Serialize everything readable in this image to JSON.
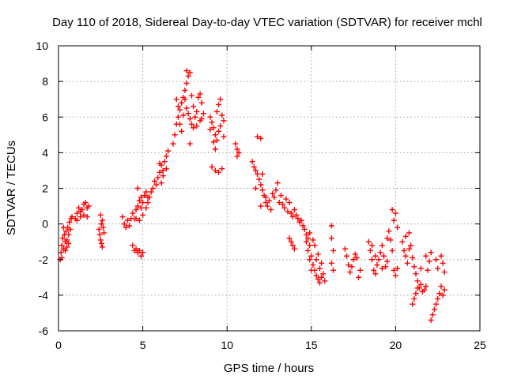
{
  "chart_data": {
    "type": "scatter",
    "title": "Day 110 of 2018, Sidereal Day-to-day VTEC variation (SDTVAR) for receiver mchl",
    "xlabel": "GPS time / hours",
    "ylabel": "SDTVAR / TECUs",
    "xlim": [
      0,
      25
    ],
    "ylim": [
      -6,
      10
    ],
    "xticks": [
      0,
      5,
      10,
      15,
      20,
      25
    ],
    "yticks": [
      -6,
      -4,
      -2,
      0,
      2,
      4,
      6,
      8,
      10
    ],
    "xtick_labels": [
      "0",
      "5",
      "10",
      "15",
      "20",
      "25"
    ],
    "ytick_labels": [
      "-6",
      "-4",
      "-2",
      "0",
      "2",
      "4",
      "6",
      "8",
      "10"
    ],
    "grid": true,
    "marker": "plus",
    "color": "#ff0000",
    "series": [
      {
        "name": "SDTVAR",
        "points": [
          [
            0.1,
            -2.0
          ],
          [
            0.15,
            -1.6
          ],
          [
            0.2,
            -1.2
          ],
          [
            0.25,
            -0.8
          ],
          [
            0.3,
            -1.4
          ],
          [
            0.35,
            -0.6
          ],
          [
            0.4,
            -1.0
          ],
          [
            0.45,
            -0.4
          ],
          [
            0.5,
            -0.9
          ],
          [
            0.55,
            -0.2
          ],
          [
            0.6,
            -0.6
          ],
          [
            0.65,
            0.1
          ],
          [
            0.7,
            -0.3
          ],
          [
            0.75,
            0.3
          ],
          [
            0.8,
            0.4
          ],
          [
            0.5,
            -1.3
          ],
          [
            0.3,
            -0.2
          ],
          [
            0.6,
            -1.1
          ],
          [
            0.2,
            -1.9
          ],
          [
            0.4,
            -1.5
          ],
          [
            1.0,
            0.3
          ],
          [
            1.1,
            0.6
          ],
          [
            1.2,
            0.9
          ],
          [
            1.3,
            0.7
          ],
          [
            1.4,
            0.8
          ],
          [
            1.5,
            1.1
          ],
          [
            1.6,
            1.2
          ],
          [
            1.7,
            0.9
          ],
          [
            1.8,
            1.0
          ],
          [
            1.1,
            0.2
          ],
          [
            1.3,
            0.4
          ],
          [
            1.5,
            0.5
          ],
          [
            1.7,
            0.4
          ],
          [
            2.4,
            -0.3
          ],
          [
            2.45,
            -0.6
          ],
          [
            2.5,
            -0.9
          ],
          [
            2.55,
            -1.1
          ],
          [
            2.6,
            -1.3
          ],
          [
            2.5,
            0.5
          ],
          [
            2.6,
            0.2
          ],
          [
            2.65,
            -0.2
          ],
          [
            2.7,
            -0.5
          ],
          [
            2.55,
            0.0
          ],
          [
            3.8,
            0.4
          ],
          [
            3.9,
            0.0
          ],
          [
            4.0,
            -0.2
          ],
          [
            4.1,
            0.2
          ],
          [
            4.2,
            -0.1
          ],
          [
            4.3,
            0.3
          ],
          [
            4.4,
            0.6
          ],
          [
            4.5,
            0.3
          ],
          [
            4.6,
            0.8
          ],
          [
            4.7,
            1.0
          ],
          [
            4.8,
            1.3
          ],
          [
            4.9,
            1.5
          ],
          [
            5.0,
            1.2
          ],
          [
            5.1,
            1.6
          ],
          [
            5.2,
            1.8
          ],
          [
            5.3,
            1.2
          ],
          [
            5.4,
            1.5
          ],
          [
            5.5,
            1.8
          ],
          [
            4.4,
            -1.2
          ],
          [
            4.5,
            -1.5
          ],
          [
            4.6,
            -1.4
          ],
          [
            4.7,
            -1.6
          ],
          [
            4.8,
            -1.5
          ],
          [
            4.9,
            -1.8
          ],
          [
            5.0,
            -1.6
          ],
          [
            4.7,
            2.0
          ],
          [
            4.8,
            0.2
          ],
          [
            5.0,
            0.5
          ],
          [
            5.2,
            0.9
          ],
          [
            5.3,
            1.5
          ],
          [
            4.6,
            0.3
          ],
          [
            4.9,
            0.9
          ],
          [
            5.6,
            2.0
          ],
          [
            5.7,
            2.4
          ],
          [
            5.8,
            2.2
          ],
          [
            5.9,
            2.6
          ],
          [
            6.0,
            2.9
          ],
          [
            6.1,
            3.3
          ],
          [
            6.2,
            3.0
          ],
          [
            6.3,
            3.5
          ],
          [
            6.4,
            3.8
          ],
          [
            6.5,
            4.1
          ],
          [
            6.0,
            3.4
          ],
          [
            6.2,
            2.7
          ],
          [
            6.4,
            3.1
          ],
          [
            6.1,
            2.3
          ],
          [
            6.8,
            4.5
          ],
          [
            6.9,
            5.0
          ],
          [
            7.0,
            5.6
          ],
          [
            7.1,
            6.0
          ],
          [
            7.2,
            6.4
          ],
          [
            7.3,
            6.8
          ],
          [
            7.4,
            7.1
          ],
          [
            7.5,
            7.5
          ],
          [
            7.6,
            7.9
          ],
          [
            7.7,
            8.3
          ],
          [
            7.8,
            8.5
          ],
          [
            7.6,
            8.6
          ],
          [
            7.5,
            7.0
          ],
          [
            7.6,
            6.5
          ],
          [
            7.7,
            6.2
          ],
          [
            7.8,
            5.9
          ],
          [
            7.9,
            5.6
          ],
          [
            8.0,
            5.4
          ],
          [
            7.9,
            7.2
          ],
          [
            8.0,
            6.6
          ],
          [
            8.1,
            6.0
          ],
          [
            8.2,
            6.3
          ],
          [
            8.3,
            7.1
          ],
          [
            8.4,
            7.3
          ],
          [
            8.5,
            6.8
          ],
          [
            8.6,
            6.2
          ],
          [
            8.4,
            5.8
          ],
          [
            7.3,
            5.2
          ],
          [
            7.2,
            5.6
          ],
          [
            7.0,
            7.0
          ],
          [
            7.8,
            4.5
          ],
          [
            8.2,
            5.5
          ],
          [
            8.5,
            5.9
          ],
          [
            7.4,
            6.1
          ],
          [
            7.1,
            6.6
          ],
          [
            9.0,
            6.0
          ],
          [
            9.1,
            5.7
          ],
          [
            9.2,
            5.4
          ],
          [
            9.3,
            5.0
          ],
          [
            9.4,
            4.7
          ],
          [
            9.5,
            5.2
          ],
          [
            9.6,
            5.5
          ],
          [
            9.7,
            6.1
          ],
          [
            9.8,
            5.8
          ],
          [
            9.5,
            6.7
          ],
          [
            9.6,
            7.0
          ],
          [
            9.4,
            6.3
          ],
          [
            9.2,
            4.6
          ],
          [
            9.3,
            4.2
          ],
          [
            9.1,
            3.2
          ],
          [
            9.3,
            3.0
          ],
          [
            9.5,
            2.9
          ],
          [
            9.7,
            3.1
          ],
          [
            9.0,
            5.3
          ],
          [
            9.8,
            4.9
          ],
          [
            10.5,
            4.5
          ],
          [
            10.6,
            4.2
          ],
          [
            10.7,
            4.0
          ],
          [
            10.6,
            3.8
          ],
          [
            11.5,
            3.5
          ],
          [
            11.6,
            3.2
          ],
          [
            11.7,
            3.0
          ],
          [
            11.8,
            2.8
          ],
          [
            11.9,
            2.5
          ],
          [
            12.0,
            2.2
          ],
          [
            12.1,
            1.9
          ],
          [
            12.2,
            1.6
          ],
          [
            11.8,
            4.9
          ],
          [
            12.0,
            4.8
          ],
          [
            12.1,
            2.8
          ],
          [
            11.7,
            2.0
          ],
          [
            12.3,
            1.2
          ],
          [
            12.4,
            1.0
          ],
          [
            12.5,
            1.3
          ],
          [
            12.6,
            0.8
          ],
          [
            12.7,
            1.7
          ],
          [
            12.8,
            1.5
          ],
          [
            12.9,
            1.9
          ],
          [
            13.0,
            2.3
          ],
          [
            13.1,
            1.2
          ],
          [
            13.2,
            1.6
          ],
          [
            13.3,
            1.1
          ],
          [
            13.4,
            0.9
          ],
          [
            13.5,
            1.4
          ],
          [
            13.6,
            0.7
          ],
          [
            13.7,
            1.2
          ],
          [
            13.8,
            0.6
          ],
          [
            13.9,
            0.4
          ],
          [
            14.0,
            0.8
          ],
          [
            14.1,
            0.5
          ],
          [
            14.2,
            0.3
          ],
          [
            14.3,
            0.1
          ],
          [
            14.4,
            0.2
          ],
          [
            14.5,
            -0.1
          ],
          [
            14.6,
            -0.3
          ],
          [
            14.7,
            -0.6
          ],
          [
            14.8,
            -0.8
          ],
          [
            14.9,
            -0.5
          ],
          [
            13.7,
            -0.8
          ],
          [
            13.8,
            -1.0
          ],
          [
            13.9,
            -1.2
          ],
          [
            14.0,
            -1.4
          ],
          [
            12.3,
            1.5
          ],
          [
            12.0,
            1.0
          ],
          [
            14.7,
            -1.0
          ],
          [
            14.8,
            -1.5
          ],
          [
            14.9,
            -2.0
          ],
          [
            15.0,
            -1.8
          ],
          [
            15.1,
            -2.3
          ],
          [
            15.2,
            -2.6
          ],
          [
            15.3,
            -2.9
          ],
          [
            15.4,
            -3.1
          ],
          [
            15.5,
            -3.3
          ],
          [
            15.6,
            -3.0
          ],
          [
            15.7,
            -2.8
          ],
          [
            15.2,
            -1.2
          ],
          [
            15.4,
            -1.7
          ],
          [
            15.6,
            -2.2
          ],
          [
            15.0,
            -2.6
          ],
          [
            15.3,
            -2.0
          ],
          [
            15.8,
            -3.2
          ],
          [
            15.5,
            -2.5
          ],
          [
            14.9,
            -1.2
          ],
          [
            15.1,
            -0.9
          ],
          [
            16.2,
            -0.8
          ],
          [
            16.3,
            -1.5
          ],
          [
            16.2,
            -2.2
          ],
          [
            16.3,
            -2.6
          ],
          [
            16.2,
            -0.1
          ],
          [
            17.0,
            -1.4
          ],
          [
            17.1,
            -1.8
          ],
          [
            17.2,
            -2.3
          ],
          [
            17.3,
            -2.7
          ],
          [
            17.4,
            -2.4
          ],
          [
            17.5,
            -2.0
          ],
          [
            17.6,
            -1.7
          ],
          [
            17.7,
            -1.9
          ],
          [
            17.8,
            -3.0
          ],
          [
            17.9,
            -2.6
          ],
          [
            18.4,
            -1.0
          ],
          [
            18.5,
            -1.5
          ],
          [
            18.6,
            -2.0
          ],
          [
            18.7,
            -2.6
          ],
          [
            18.8,
            -2.8
          ],
          [
            18.9,
            -2.3
          ],
          [
            19.0,
            -2.0
          ],
          [
            19.1,
            -1.6
          ],
          [
            19.2,
            -1.2
          ],
          [
            19.3,
            -1.8
          ],
          [
            19.4,
            -2.4
          ],
          [
            19.5,
            -2.1
          ],
          [
            19.6,
            -0.4
          ],
          [
            19.7,
            -0.9
          ],
          [
            19.8,
            -1.5
          ],
          [
            19.9,
            0.2
          ],
          [
            20.0,
            0.6
          ],
          [
            19.8,
            0.8
          ],
          [
            20.1,
            -0.2
          ],
          [
            19.9,
            -2.6
          ],
          [
            20.0,
            -2.9
          ],
          [
            20.1,
            -2.5
          ],
          [
            18.6,
            -1.2
          ],
          [
            19.2,
            -2.5
          ],
          [
            19.5,
            -0.8
          ],
          [
            18.8,
            -1.8
          ],
          [
            20.4,
            -1.0
          ],
          [
            20.5,
            -1.5
          ],
          [
            20.6,
            -1.8
          ],
          [
            20.7,
            -2.2
          ],
          [
            20.8,
            -1.4
          ],
          [
            20.9,
            -1.2
          ],
          [
            21.0,
            -1.9
          ],
          [
            21.1,
            -2.4
          ],
          [
            21.2,
            -2.8
          ],
          [
            21.3,
            -3.2
          ],
          [
            21.4,
            -3.6
          ],
          [
            21.5,
            -3.4
          ],
          [
            21.6,
            -3.8
          ],
          [
            21.7,
            -3.7
          ],
          [
            21.8,
            -3.5
          ],
          [
            21.9,
            -2.6
          ],
          [
            22.0,
            -2.1
          ],
          [
            22.1,
            -1.6
          ],
          [
            20.6,
            -0.7
          ],
          [
            20.8,
            -0.5
          ],
          [
            21.0,
            -4.5
          ],
          [
            21.1,
            -4.2
          ],
          [
            21.2,
            -3.9
          ],
          [
            21.3,
            -3.6
          ],
          [
            22.1,
            -5.4
          ],
          [
            22.2,
            -5.1
          ],
          [
            22.3,
            -4.8
          ],
          [
            22.4,
            -4.5
          ],
          [
            22.5,
            -4.2
          ],
          [
            22.6,
            -3.9
          ],
          [
            22.7,
            -3.5
          ],
          [
            22.8,
            -4.0
          ],
          [
            22.9,
            -3.7
          ],
          [
            22.7,
            -1.8
          ],
          [
            22.8,
            -2.2
          ],
          [
            22.9,
            -2.7
          ],
          [
            22.5,
            -2.5
          ],
          [
            22.4,
            -2.0
          ],
          [
            21.5,
            -2.5
          ],
          [
            21.8,
            -1.8
          ]
        ]
      }
    ]
  }
}
